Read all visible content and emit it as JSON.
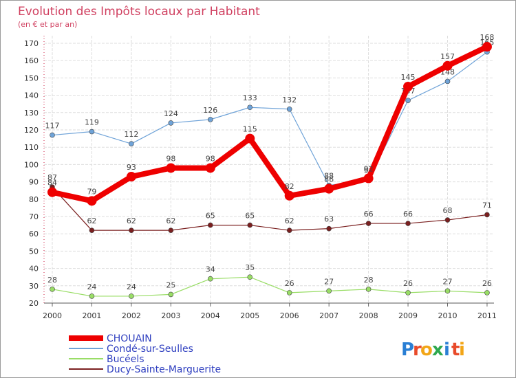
{
  "title": "Evolution des Impôts locaux par Habitant",
  "subtitle": "(en € et par an)",
  "logo": {
    "letters": [
      "P",
      "r",
      "o",
      "x",
      "i",
      "t",
      "i"
    ],
    "colors": [
      "#2a7fd4",
      "#e84a2a",
      "#f2a516",
      "#2fa84f",
      "#2a7fd4",
      "#e84a2a",
      "#f2a516"
    ]
  },
  "chart_data": {
    "type": "line",
    "title": "Evolution des Impôts locaux par Habitant",
    "subtitle": "(en € et par an)",
    "xlabel": "",
    "ylabel": "",
    "x": [
      "2000",
      "2001",
      "2002",
      "2003",
      "2004",
      "2005",
      "2006",
      "2007",
      "2008",
      "2009",
      "2010",
      "2011"
    ],
    "ylim": [
      20,
      170
    ],
    "yticks": [
      20,
      30,
      40,
      50,
      60,
      70,
      80,
      90,
      100,
      110,
      120,
      130,
      140,
      150,
      160,
      170
    ],
    "grid": true,
    "legend_position": "bottom-left",
    "series": [
      {
        "name": "Ducy-Sainte-Marguerite",
        "color": "#7a1f1f",
        "width": 1.2,
        "marker": 3.5,
        "values": [
          87,
          62,
          62,
          62,
          65,
          65,
          62,
          63,
          66,
          66,
          68,
          71
        ]
      },
      {
        "name": "Bucéels",
        "color": "#99dd66",
        "width": 1.2,
        "marker": 3.5,
        "values": [
          28,
          24,
          24,
          25,
          34,
          35,
          26,
          27,
          28,
          26,
          27,
          26
        ]
      },
      {
        "name": "Condé-sur-Seulles",
        "color": "#6fa3d8",
        "width": 1.2,
        "marker": 3.5,
        "values": [
          117,
          119,
          112,
          124,
          126,
          133,
          132,
          88,
          91,
          137,
          148,
          165
        ]
      },
      {
        "name": "CHOUAIN",
        "color": "#ee0000",
        "width": 8,
        "marker": 7,
        "values": [
          84,
          79,
          93,
          98,
          98,
          115,
          82,
          86,
          92,
          145,
          157,
          168
        ]
      }
    ]
  }
}
